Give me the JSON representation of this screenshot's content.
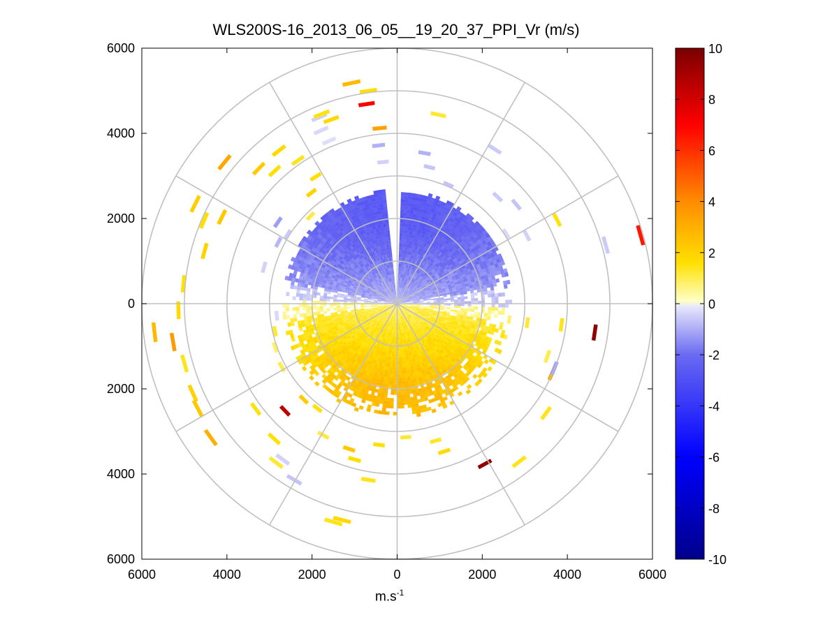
{
  "chart_data": {
    "type": "heatmap",
    "title": "WLS200S-16_2013_06_05__19_20_37_PPI_Vr (m/s)",
    "xlabel_base": "m.s",
    "xlabel_exp": "-1",
    "x_ticks": [
      "6000",
      "4000",
      "2000",
      "0",
      "2000",
      "4000",
      "6000"
    ],
    "y_ticks": [
      "6000",
      "4000",
      "2000",
      "0",
      "2000",
      "4000",
      "6000"
    ],
    "xlim": [
      -6000,
      6000
    ],
    "ylim": [
      -6000,
      6000
    ],
    "colorbar": {
      "range": [
        -10,
        10
      ],
      "ticks": [
        "10",
        "8",
        "6",
        "4",
        "2",
        "0",
        "-2",
        "-4",
        "-6",
        "-8",
        "-10"
      ]
    },
    "polar_grid": {
      "rings": [
        1000,
        2000,
        3000,
        4000,
        5000,
        6000
      ],
      "spoke_angle_step_deg": 30
    },
    "description_of_field": "Radial velocity PPI: inner disc (r < ~2700 m) negative (blue, about -1 to -3 m/s) in the northern half and positive (yellow/orange, about 1 to 3 m/s) in the southern half; sparse scattered arcs beyond."
  }
}
